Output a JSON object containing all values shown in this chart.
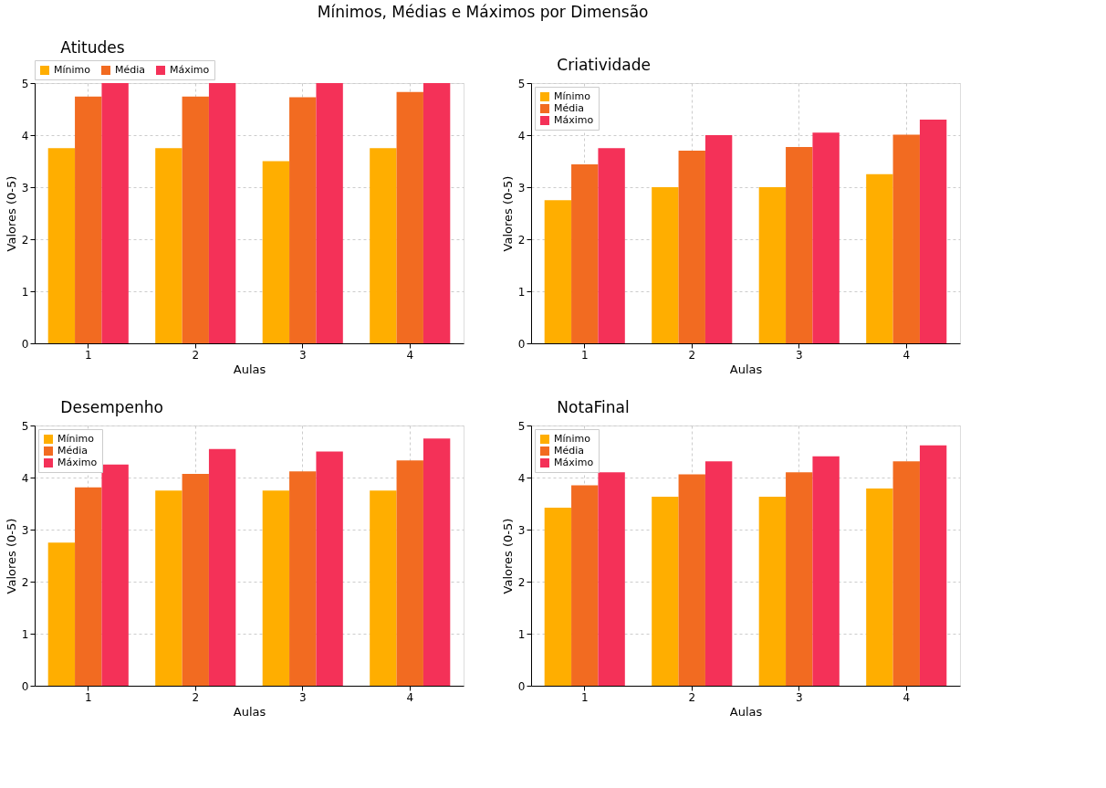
{
  "chart_data": [
    {
      "type": "bar",
      "title": "Atitudes",
      "annotations": [
        "Mínimos, Médias e Máximos por Dimensão"
      ],
      "xlabel": "Aulas",
      "ylabel": "Valores (0-5)",
      "categories": [
        "1",
        "2",
        "3",
        "4"
      ],
      "ylim": [
        0,
        5
      ],
      "yticks": [
        0,
        1,
        2,
        3,
        4,
        5
      ],
      "grid": true,
      "legend": "top",
      "series": [
        {
          "name": "Mínimo",
          "color": "#ffae00",
          "values": [
            3.75,
            3.75,
            3.5,
            3.75
          ]
        },
        {
          "name": "Média",
          "color": "#f26b21",
          "values": [
            4.74,
            4.74,
            4.73,
            4.83
          ]
        },
        {
          "name": "Máximo",
          "color": "#f43158",
          "values": [
            5,
            5,
            5,
            5
          ]
        }
      ]
    },
    {
      "type": "bar",
      "title": "Criatividade",
      "xlabel": "Aulas",
      "ylabel": "Valores (0-5)",
      "categories": [
        "1",
        "2",
        "3",
        "4"
      ],
      "ylim": [
        0,
        5
      ],
      "yticks": [
        0,
        1,
        2,
        3,
        4,
        5
      ],
      "grid": true,
      "legend": "top left",
      "series": [
        {
          "name": "Mínimo",
          "color": "#ffae00",
          "values": [
            2.75,
            3.0,
            3.0,
            3.25
          ]
        },
        {
          "name": "Média",
          "color": "#f26b21",
          "values": [
            3.44,
            3.7,
            3.77,
            4.01
          ]
        },
        {
          "name": "Máximo",
          "color": "#f43158",
          "values": [
            3.75,
            4.0,
            4.05,
            4.3
          ]
        }
      ]
    },
    {
      "type": "bar",
      "title": "Desempenho",
      "xlabel": "Aulas",
      "ylabel": "Valores (0-5)",
      "categories": [
        "1",
        "2",
        "3",
        "4"
      ],
      "ylim": [
        0,
        5
      ],
      "yticks": [
        0,
        1,
        2,
        3,
        4,
        5
      ],
      "grid": true,
      "legend": "top left",
      "series": [
        {
          "name": "Mínimo",
          "color": "#ffae00",
          "values": [
            2.75,
            3.75,
            3.75,
            3.75
          ]
        },
        {
          "name": "Média",
          "color": "#f26b21",
          "values": [
            3.81,
            4.07,
            4.12,
            4.33
          ]
        },
        {
          "name": "Máximo",
          "color": "#f43158",
          "values": [
            4.25,
            4.55,
            4.5,
            4.75
          ]
        }
      ]
    },
    {
      "type": "bar",
      "title": "NotaFinal",
      "xlabel": "Aulas",
      "ylabel": "Valores (0-5)",
      "categories": [
        "1",
        "2",
        "3",
        "4"
      ],
      "ylim": [
        0,
        5
      ],
      "yticks": [
        0,
        1,
        2,
        3,
        4,
        5
      ],
      "grid": true,
      "legend": "top left",
      "series": [
        {
          "name": "Mínimo",
          "color": "#ffae00",
          "values": [
            3.42,
            3.63,
            3.63,
            3.79
          ]
        },
        {
          "name": "Média",
          "color": "#f26b21",
          "values": [
            3.85,
            4.06,
            4.1,
            4.31
          ]
        },
        {
          "name": "Máximo",
          "color": "#f43158",
          "values": [
            4.1,
            4.31,
            4.41,
            4.62
          ]
        }
      ]
    }
  ]
}
